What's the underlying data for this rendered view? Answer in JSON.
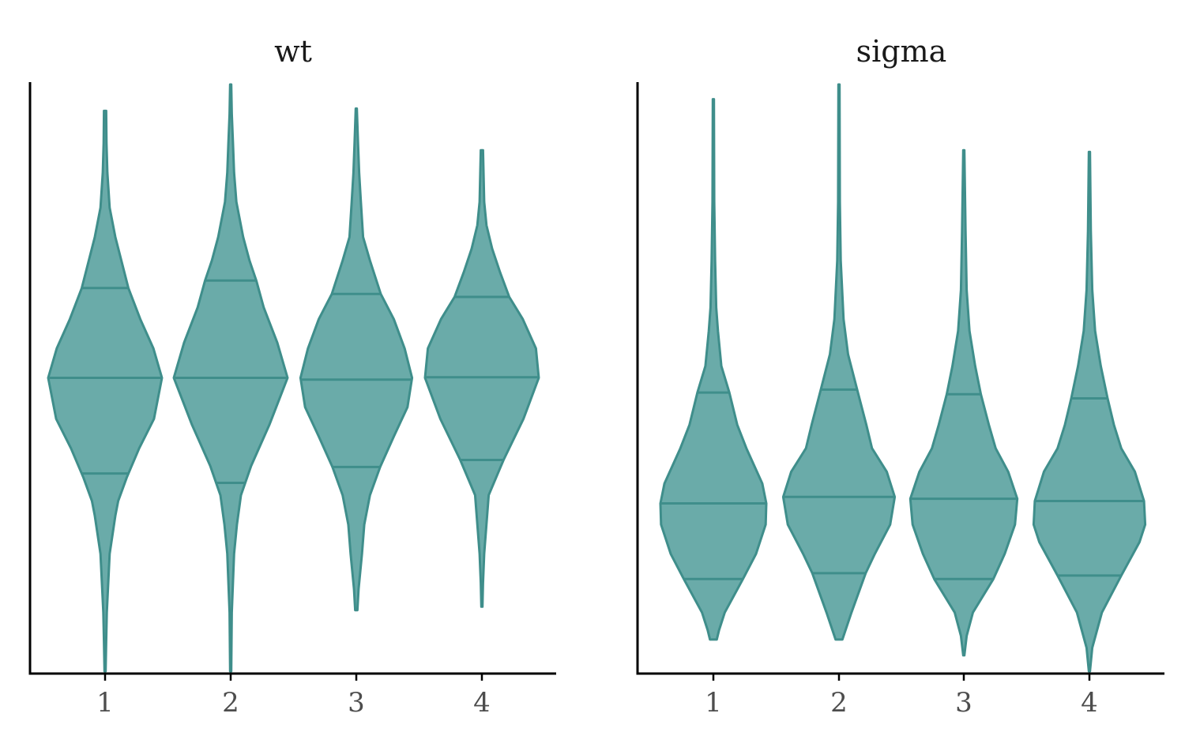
{
  "chart_data": [
    {
      "type": "violin",
      "title": "wt",
      "xlabel": "",
      "ylabel": "",
      "categories": [
        "1",
        "2",
        "3",
        "4"
      ],
      "ylim": [
        0,
        1
      ],
      "grid": false,
      "legend": "none",
      "colors": {
        "fill": "#6aaba9",
        "stroke": "#3f8e8b"
      },
      "violins": [
        {
          "category": "1",
          "min": 0.0,
          "max": 0.955,
          "quantiles": [
            0.337,
            0.5,
            0.653
          ],
          "shape": [
            [
              0.0,
              0.01
            ],
            [
              0.05,
              0.02
            ],
            [
              0.1,
              0.03
            ],
            [
              0.2,
              0.08
            ],
            [
              0.265,
              0.18
            ],
            [
              0.29,
              0.23
            ],
            [
              0.33,
              0.38
            ],
            [
              0.38,
              0.6
            ],
            [
              0.43,
              0.86
            ],
            [
              0.5,
              1.0
            ],
            [
              0.55,
              0.85
            ],
            [
              0.6,
              0.62
            ],
            [
              0.653,
              0.41
            ],
            [
              0.71,
              0.26
            ],
            [
              0.74,
              0.18
            ],
            [
              0.79,
              0.08
            ],
            [
              0.85,
              0.04
            ],
            [
              0.9,
              0.025
            ],
            [
              0.955,
              0.02
            ]
          ]
        },
        {
          "category": "2",
          "min": 0.0,
          "max": 1.0,
          "quantiles": [
            0.321,
            0.5,
            0.666
          ],
          "shape": [
            [
              0.0,
              0.01
            ],
            [
              0.1,
              0.02
            ],
            [
              0.2,
              0.06
            ],
            [
              0.25,
              0.11
            ],
            [
              0.3,
              0.18
            ],
            [
              0.35,
              0.36
            ],
            [
              0.42,
              0.68
            ],
            [
              0.5,
              1.0
            ],
            [
              0.56,
              0.82
            ],
            [
              0.62,
              0.58
            ],
            [
              0.666,
              0.45
            ],
            [
              0.7,
              0.33
            ],
            [
              0.74,
              0.22
            ],
            [
              0.8,
              0.1
            ],
            [
              0.85,
              0.06
            ],
            [
              0.9,
              0.04
            ],
            [
              0.95,
              0.02
            ],
            [
              1.0,
              0.01
            ]
          ]
        },
        {
          "category": "3",
          "min": 0.104,
          "max": 0.959,
          "quantiles": [
            0.348,
            0.497,
            0.643
          ],
          "shape": [
            [
              0.104,
              0.02
            ],
            [
              0.14,
              0.04
            ],
            [
              0.2,
              0.1
            ],
            [
              0.25,
              0.14
            ],
            [
              0.3,
              0.24
            ],
            [
              0.348,
              0.42
            ],
            [
              0.4,
              0.66
            ],
            [
              0.45,
              0.9
            ],
            [
              0.5,
              0.98
            ],
            [
              0.55,
              0.85
            ],
            [
              0.6,
              0.66
            ],
            [
              0.643,
              0.43
            ],
            [
              0.7,
              0.24
            ],
            [
              0.74,
              0.12
            ],
            [
              0.8,
              0.08
            ],
            [
              0.85,
              0.05
            ],
            [
              0.9,
              0.03
            ],
            [
              0.959,
              0.01
            ]
          ]
        },
        {
          "category": "4",
          "min": 0.11,
          "max": 0.888,
          "quantiles": [
            0.36,
            0.501,
            0.638
          ],
          "shape": [
            [
              0.11,
              0.01
            ],
            [
              0.15,
              0.02
            ],
            [
              0.2,
              0.04
            ],
            [
              0.3,
              0.12
            ],
            [
              0.36,
              0.38
            ],
            [
              0.43,
              0.73
            ],
            [
              0.5,
              1.0
            ],
            [
              0.55,
              0.95
            ],
            [
              0.6,
              0.72
            ],
            [
              0.638,
              0.48
            ],
            [
              0.68,
              0.32
            ],
            [
              0.72,
              0.18
            ],
            [
              0.76,
              0.08
            ],
            [
              0.8,
              0.04
            ],
            [
              0.888,
              0.02
            ]
          ]
        }
      ]
    },
    {
      "type": "violin",
      "title": "sigma",
      "xlabel": "",
      "ylabel": "",
      "categories": [
        "1",
        "2",
        "3",
        "4"
      ],
      "ylim": [
        0,
        1
      ],
      "grid": false,
      "legend": "none",
      "colors": {
        "fill": "#6aaba9",
        "stroke": "#3f8e8b"
      },
      "violins": [
        {
          "category": "1",
          "min": 0.054,
          "max": 0.975,
          "quantiles": [
            0.157,
            0.286,
            0.475
          ],
          "shape": [
            [
              0.054,
              0.06
            ],
            [
              0.07,
              0.1
            ],
            [
              0.1,
              0.2
            ],
            [
              0.157,
              0.52
            ],
            [
              0.2,
              0.75
            ],
            [
              0.25,
              0.92
            ],
            [
              0.286,
              0.93
            ],
            [
              0.32,
              0.86
            ],
            [
              0.38,
              0.58
            ],
            [
              0.42,
              0.42
            ],
            [
              0.475,
              0.28
            ],
            [
              0.52,
              0.14
            ],
            [
              0.58,
              0.08
            ],
            [
              0.62,
              0.05
            ],
            [
              0.7,
              0.03
            ],
            [
              0.8,
              0.015
            ],
            [
              0.975,
              0.01
            ]
          ]
        },
        {
          "category": "2",
          "min": 0.054,
          "max": 1.0,
          "quantiles": [
            0.167,
            0.297,
            0.48
          ],
          "shape": [
            [
              0.054,
              0.06
            ],
            [
              0.1,
              0.22
            ],
            [
              0.167,
              0.47
            ],
            [
              0.2,
              0.63
            ],
            [
              0.25,
              0.9
            ],
            [
              0.297,
              0.98
            ],
            [
              0.34,
              0.84
            ],
            [
              0.38,
              0.58
            ],
            [
              0.42,
              0.48
            ],
            [
              0.48,
              0.32
            ],
            [
              0.54,
              0.16
            ],
            [
              0.6,
              0.08
            ],
            [
              0.7,
              0.03
            ],
            [
              0.8,
              0.015
            ],
            [
              1.0,
              0.01
            ]
          ]
        },
        {
          "category": "3",
          "min": 0.027,
          "max": 0.888,
          "quantiles": [
            0.157,
            0.294,
            0.472
          ],
          "shape": [
            [
              0.027,
              0.01
            ],
            [
              0.06,
              0.05
            ],
            [
              0.1,
              0.16
            ],
            [
              0.157,
              0.52
            ],
            [
              0.2,
              0.72
            ],
            [
              0.25,
              0.9
            ],
            [
              0.294,
              0.94
            ],
            [
              0.34,
              0.78
            ],
            [
              0.38,
              0.56
            ],
            [
              0.42,
              0.44
            ],
            [
              0.472,
              0.3
            ],
            [
              0.52,
              0.2
            ],
            [
              0.58,
              0.1
            ],
            [
              0.65,
              0.05
            ],
            [
              0.75,
              0.03
            ],
            [
              0.888,
              0.01
            ]
          ]
        },
        {
          "category": "4",
          "min": 0.0,
          "max": 0.885,
          "quantiles": [
            0.163,
            0.29,
            0.465
          ],
          "shape": [
            [
              0.0,
              0.01
            ],
            [
              0.04,
              0.05
            ],
            [
              0.1,
              0.22
            ],
            [
              0.163,
              0.56
            ],
            [
              0.22,
              0.88
            ],
            [
              0.25,
              0.98
            ],
            [
              0.29,
              0.96
            ],
            [
              0.34,
              0.8
            ],
            [
              0.38,
              0.56
            ],
            [
              0.42,
              0.43
            ],
            [
              0.465,
              0.32
            ],
            [
              0.52,
              0.2
            ],
            [
              0.58,
              0.1
            ],
            [
              0.65,
              0.05
            ],
            [
              0.75,
              0.025
            ],
            [
              0.885,
              0.01
            ]
          ]
        }
      ]
    }
  ]
}
